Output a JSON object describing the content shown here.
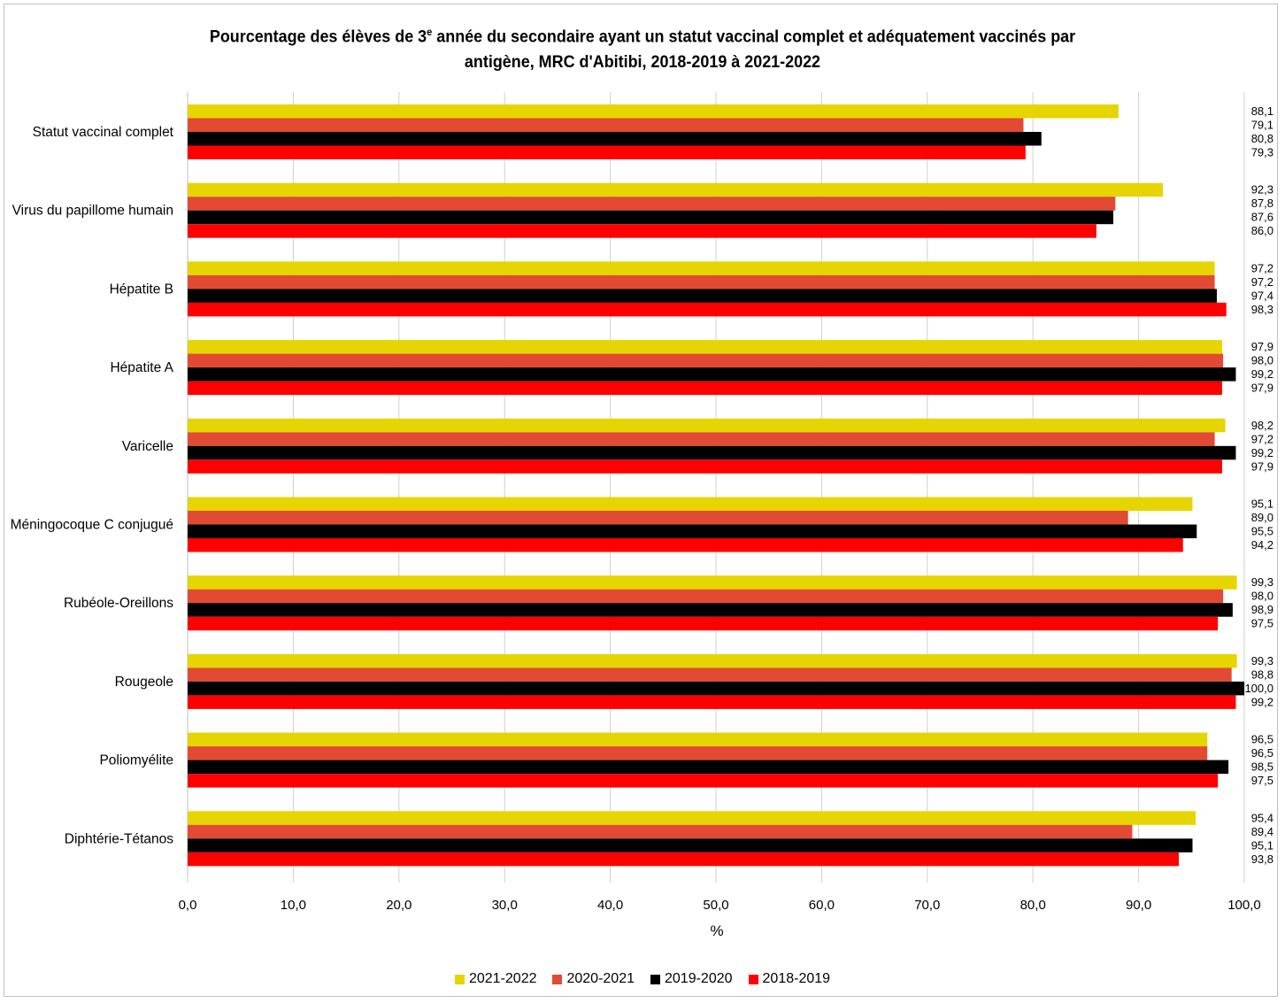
{
  "title_line1_pre": "Pourcentage des élèves de 3",
  "title_sup": "e",
  "title_line1_post": " année du secondaire ayant un statut vaccinal complet et adéquatement vaccinés par",
  "title_line2": "antigène, MRC d'Abitibi, 2018-2019 à 2021-2022",
  "chart_data": {
    "type": "bar",
    "orientation": "horizontal",
    "title": "Pourcentage des élèves de 3e année du secondaire ayant un statut vaccinal complet et adéquatement vaccinés par antigène, MRC d'Abitibi, 2018-2019 à 2021-2022",
    "xlabel": "%",
    "ylabel": "",
    "xlim": [
      0,
      100
    ],
    "xticks": [
      "0,0",
      "10,0",
      "20,0",
      "30,0",
      "40,0",
      "50,0",
      "60,0",
      "70,0",
      "80,0",
      "90,0",
      "100,0"
    ],
    "grid": true,
    "legend_position": "bottom",
    "categories": [
      "Statut vaccinal complet",
      "Virus du papillome humain",
      "Hépatite B",
      "Hépatite A",
      "Varicelle",
      "Méningocoque C conjugué",
      "Rubéole-Oreillons",
      "Rougeole",
      "Poliomyélite",
      "Diphtérie-Tétanos"
    ],
    "series": [
      {
        "name": "2021-2022",
        "color": "#e6d500",
        "values": [
          88.1,
          92.3,
          97.2,
          97.9,
          98.2,
          95.1,
          99.3,
          99.3,
          96.5,
          95.4
        ],
        "labels": [
          "88,1",
          "92,3",
          "97,2",
          "97,9",
          "98,2",
          "95,1",
          "99,3",
          "99,3",
          "96,5",
          "95,4"
        ]
      },
      {
        "name": "2020-2021",
        "color": "#e34a33",
        "values": [
          79.1,
          87.8,
          97.2,
          98.0,
          97.2,
          89.0,
          98.0,
          98.8,
          96.5,
          89.4
        ],
        "labels": [
          "79,1",
          "87,8",
          "97,2",
          "98,0",
          "97,2",
          "89,0",
          "98,0",
          "98,8",
          "96,5",
          "89,4"
        ]
      },
      {
        "name": "2019-2020",
        "color": "#000000",
        "values": [
          80.8,
          87.6,
          97.4,
          99.2,
          99.2,
          95.5,
          98.9,
          100.0,
          98.5,
          95.1
        ],
        "labels": [
          "80,8",
          "87,6",
          "97,4",
          "99,2",
          "99,2",
          "95,5",
          "98,9",
          "100,0",
          "98,5",
          "95,1"
        ]
      },
      {
        "name": "2018-2019",
        "color": "#ff0000",
        "values": [
          79.3,
          86.0,
          98.3,
          97.9,
          97.9,
          94.2,
          97.5,
          99.2,
          97.5,
          93.8
        ],
        "labels": [
          "79,3",
          "86,0",
          "98,3",
          "97,9",
          "97,9",
          "94,2",
          "97,5",
          "99,2",
          "97,5",
          "93,8"
        ]
      }
    ]
  }
}
